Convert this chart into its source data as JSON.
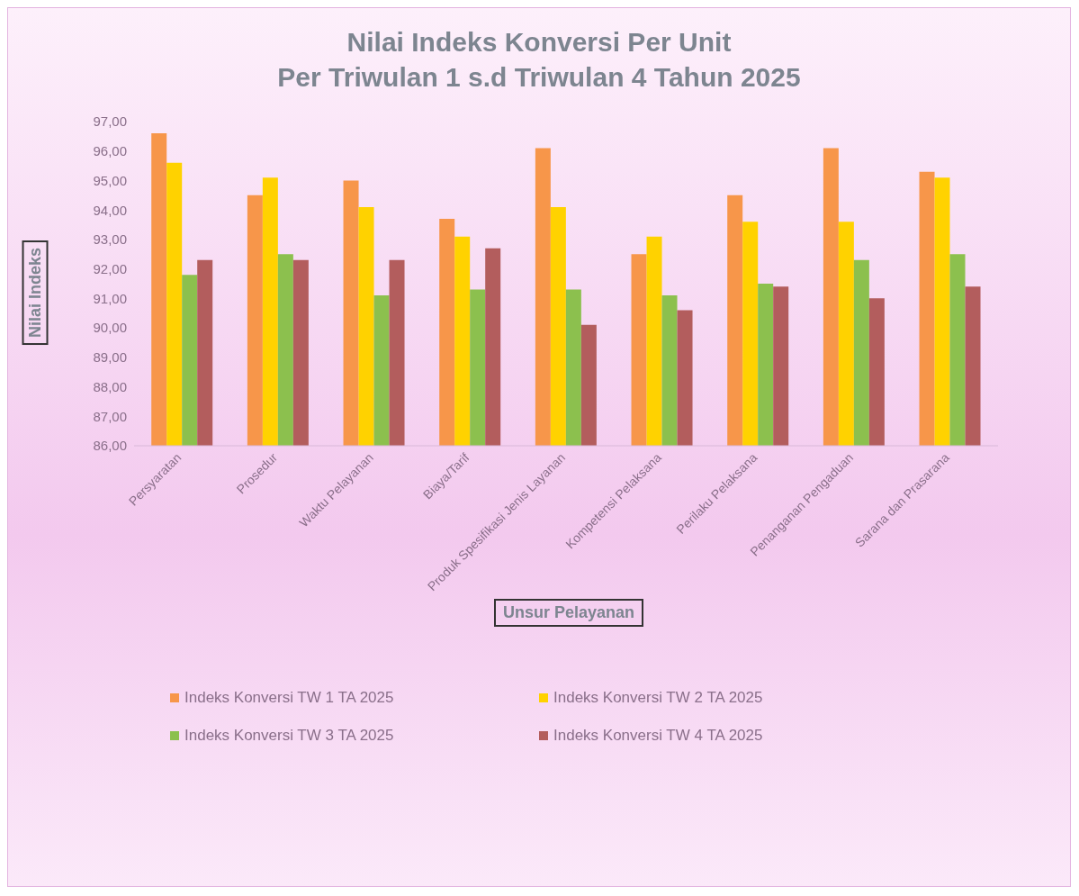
{
  "chart_data": {
    "type": "bar",
    "title": "Nilai Indeks Konversi Per Unit\nPer Triwulan 1 s.d Triwulan 4 Tahun 2025",
    "xlabel": "Unsur Pelayanan",
    "ylabel": "Nilai Indeks",
    "categories": [
      "Persyaratan",
      "Prosedur",
      "Waktu Pelayanan",
      "Biaya/Tarif",
      "Produk Spesifikasi Jenis Layanan",
      "Kompetensi Pelaksana",
      "Perilaku Pelaksana",
      "Penanganan Pengaduan",
      "Sarana dan Prasarana"
    ],
    "series": [
      {
        "name": "Indeks Konversi TW 1 TA 2025",
        "color": "#f7964a",
        "values": [
          96.6,
          94.5,
          95.0,
          93.7,
          96.1,
          92.5,
          94.5,
          96.1,
          95.3
        ]
      },
      {
        "name": "Indeks Konversi TW 2 TA 2025",
        "color": "#ffd200",
        "values": [
          95.6,
          95.1,
          94.1,
          93.1,
          94.1,
          93.1,
          93.6,
          93.6,
          95.1
        ]
      },
      {
        "name": "Indeks Konversi TW 3 TA 2025",
        "color": "#8cc04e",
        "values": [
          91.8,
          92.5,
          91.1,
          91.3,
          91.3,
          91.1,
          91.5,
          92.3,
          92.5
        ]
      },
      {
        "name": "Indeks Konversi TW 4 TA 2025",
        "color": "#b35d5d",
        "values": [
          92.3,
          92.3,
          92.3,
          92.7,
          90.1,
          90.6,
          91.4,
          91.0,
          91.4
        ]
      }
    ],
    "ylim": [
      86,
      97
    ],
    "yticks": [
      {
        "value": 86,
        "label": "86,00"
      },
      {
        "value": 87,
        "label": "87,00"
      },
      {
        "value": 88,
        "label": "88,00"
      },
      {
        "value": 89,
        "label": "89,00"
      },
      {
        "value": 90,
        "label": "90,00"
      },
      {
        "value": 91,
        "label": "91,00"
      },
      {
        "value": 92,
        "label": "92,00"
      },
      {
        "value": 93,
        "label": "93,00"
      },
      {
        "value": 94,
        "label": "94,00"
      },
      {
        "value": 95,
        "label": "95,00"
      },
      {
        "value": 96,
        "label": "96,00"
      },
      {
        "value": 97,
        "label": "97,00"
      }
    ],
    "grid": false,
    "legend": "bottom"
  }
}
